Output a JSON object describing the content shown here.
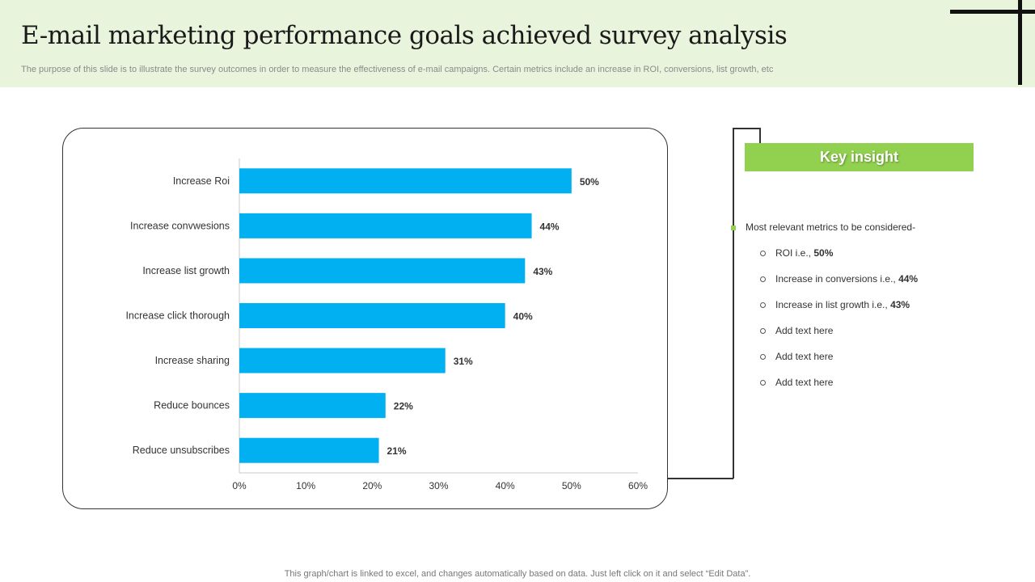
{
  "header": {
    "title": "E-mail marketing performance goals achieved survey analysis",
    "subtitle": "The purpose of this slide is to illustrate the survey outcomes in order to measure the effectiveness of e-mail campaigns. Certain metrics include an increase in ROI, conversions, list growth, etc"
  },
  "chart_data": {
    "type": "bar",
    "orientation": "horizontal",
    "categories": [
      "Increase Roi",
      "Increase convwesions",
      "Increase list growth",
      "Increase click thorough",
      "Increase sharing",
      "Reduce bounces",
      "Reduce unsubscribes"
    ],
    "values": [
      50,
      44,
      43,
      40,
      31,
      22,
      21
    ],
    "value_labels": [
      "50%",
      "44%",
      "43%",
      "40%",
      "31%",
      "22%",
      "21%"
    ],
    "xlim": [
      0,
      60
    ],
    "xticks": [
      "0%",
      "10%",
      "20%",
      "30%",
      "40%",
      "50%",
      "60%"
    ],
    "bar_color": "#00b0f0",
    "grid": false
  },
  "insight": {
    "title": "Key insight",
    "lead": "Most relevant  metrics to be considered-",
    "items": [
      {
        "text": "ROI i.e., ",
        "value": "50%"
      },
      {
        "text": "Increase in conversions  i.e., ",
        "value": "44%"
      },
      {
        "text": "Increase in list growth  i.e., ",
        "value": "43%"
      },
      {
        "text": "Add text here",
        "value": ""
      },
      {
        "text": "Add text here",
        "value": ""
      },
      {
        "text": "Add text here",
        "value": ""
      }
    ],
    "accent_color": "#92d050"
  },
  "footer": {
    "note": "This graph/chart is linked to excel,  and changes automatically based on data. Just left click on it and select “Edit Data”."
  }
}
